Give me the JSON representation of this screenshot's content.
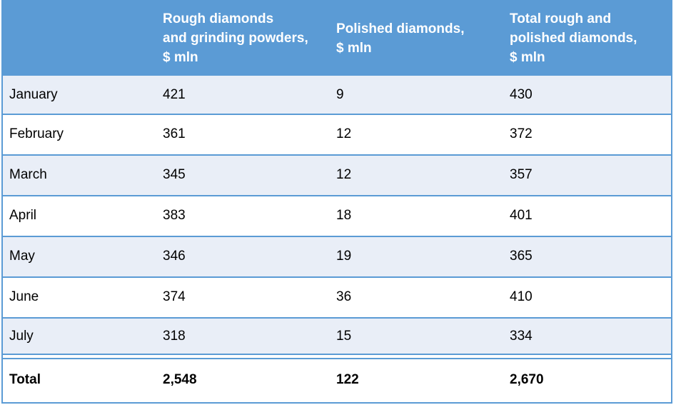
{
  "table": {
    "headers": [
      "",
      "Rough diamonds\nand grinding powders,\n$ mln",
      "Polished diamonds,\n$ mln",
      "Total rough and\npolished diamonds,\n$ mln"
    ],
    "rows": [
      {
        "month": "January",
        "rough": "421",
        "polished": "9",
        "total": "430"
      },
      {
        "month": "February",
        "rough": "361",
        "polished": "12",
        "total": "372"
      },
      {
        "month": "March",
        "rough": "345",
        "polished": "12",
        "total": "357"
      },
      {
        "month": "April",
        "rough": "383",
        "polished": "18",
        "total": "401"
      },
      {
        "month": "May",
        "rough": "346",
        "polished": "19",
        "total": "365"
      },
      {
        "month": "June",
        "rough": "374",
        "polished": "36",
        "total": "410"
      },
      {
        "month": "July",
        "rough": "318",
        "polished": "15",
        "total": "334"
      }
    ],
    "total": {
      "label": "Total",
      "rough": "2,548",
      "polished": "122",
      "total": "2,670"
    }
  },
  "colors": {
    "header_bg": "#5b9bd5",
    "shaded_row": "#e9eef7",
    "border": "#5b9bd5"
  }
}
